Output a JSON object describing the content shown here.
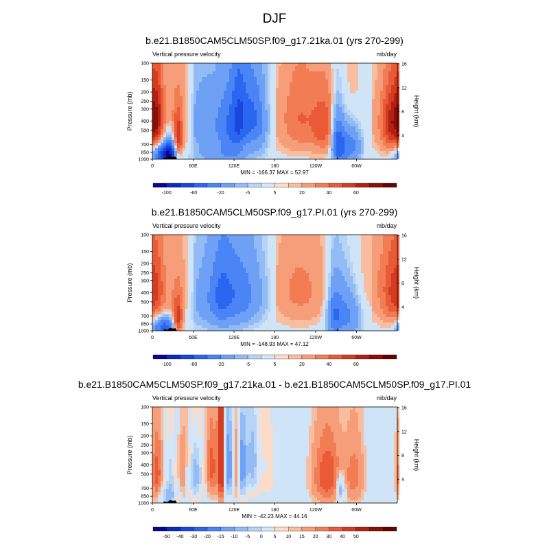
{
  "figure": {
    "season": "DJF"
  },
  "chart_data": [
    {
      "type": "heatmap",
      "title": "b.e21.B1850CAM5CLM50SP.f09_g17.21ka.01 (yrs 270-299)",
      "subtitle_left": "Vertical pressure velocity",
      "subtitle_right": "mb/day",
      "ylabel": "Pressure (mb)",
      "ylabel_right": "Height (km)",
      "xticks": [
        "0",
        "60E",
        "120E",
        "180",
        "120W",
        "60W"
      ],
      "yticks": [
        "100",
        "150",
        "200",
        "250",
        "300",
        "400",
        "500",
        "700",
        "850",
        "1000"
      ],
      "yticks_right": [
        "16",
        "12",
        "8",
        "4"
      ],
      "min_max": "MIN = -166.37  MAX =  52.97",
      "colorbar_labels": [
        "-100",
        "-60",
        "-20",
        "-5",
        "5",
        "20",
        "40",
        "60"
      ],
      "features": [
        {
          "lon": 15,
          "p": 900,
          "val": -90,
          "wx": 12,
          "wy": 150
        },
        {
          "lon": 25,
          "p": 800,
          "val": -70,
          "wx": 8,
          "wy": 200
        },
        {
          "lon": 35,
          "p": 700,
          "val": 55,
          "wx": 5,
          "wy": 250
        },
        {
          "lon": 5,
          "p": 350,
          "val": 35,
          "wx": 8,
          "wy": 250
        },
        {
          "lon": 40,
          "p": 400,
          "val": 20,
          "wx": 12,
          "wy": 300
        },
        {
          "lon": 75,
          "p": 400,
          "val": -35,
          "wx": 22,
          "wy": 250
        },
        {
          "lon": 110,
          "p": 450,
          "val": -45,
          "wx": 12,
          "wy": 300
        },
        {
          "lon": 140,
          "p": 350,
          "val": -50,
          "wx": 12,
          "wy": 250
        },
        {
          "lon": 125,
          "p": 350,
          "val": -45,
          "wx": 8,
          "wy": 300
        },
        {
          "lon": 155,
          "p": 400,
          "val": -30,
          "wx": 10,
          "wy": 250
        },
        {
          "lon": 100,
          "p": 900,
          "val": -25,
          "wx": 30,
          "wy": 150
        },
        {
          "lon": 215,
          "p": 350,
          "val": 22,
          "wx": 20,
          "wy": 300
        },
        {
          "lon": 250,
          "p": 450,
          "val": 25,
          "wx": 12,
          "wy": 250
        },
        {
          "lon": 270,
          "p": 650,
          "val": -60,
          "wx": 6,
          "wy": 300
        },
        {
          "lon": 280,
          "p": 700,
          "val": -45,
          "wx": 8,
          "wy": 300
        },
        {
          "lon": 295,
          "p": 700,
          "val": -35,
          "wx": 8,
          "wy": 250
        },
        {
          "lon": 285,
          "p": 250,
          "val": 15,
          "wx": 15,
          "wy": 200
        },
        {
          "lon": 350,
          "p": 400,
          "val": 45,
          "wx": 12,
          "wy": 250
        }
      ]
    },
    {
      "type": "heatmap",
      "title": "b.e21.B1850CAM5CLM50SP.f09_g17.PI.01 (yrs 270-299)",
      "subtitle_left": "Vertical pressure velocity",
      "subtitle_right": "mb/day",
      "ylabel": "Pressure (mb)",
      "ylabel_right": "Height (km)",
      "xticks": [
        "0",
        "60E",
        "120E",
        "180",
        "120W",
        "60W"
      ],
      "yticks": [
        "100",
        "150",
        "200",
        "250",
        "300",
        "400",
        "500",
        "700",
        "850",
        "1000"
      ],
      "yticks_right": [
        "16",
        "12",
        "8",
        "4"
      ],
      "min_max": "MIN = -148.93  MAX =  47.12",
      "colorbar_labels": [
        "-100",
        "-60",
        "-20",
        "-5",
        "5",
        "20",
        "40",
        "60"
      ],
      "features": [
        {
          "lon": 15,
          "p": 900,
          "val": -80,
          "wx": 12,
          "wy": 150
        },
        {
          "lon": 35,
          "p": 800,
          "val": 50,
          "wx": 5,
          "wy": 250
        },
        {
          "lon": 5,
          "p": 350,
          "val": 22,
          "wx": 10,
          "wy": 300
        },
        {
          "lon": 40,
          "p": 400,
          "val": 15,
          "wx": 12,
          "wy": 300
        },
        {
          "lon": 80,
          "p": 450,
          "val": -30,
          "wx": 25,
          "wy": 300
        },
        {
          "lon": 100,
          "p": 400,
          "val": -38,
          "wx": 12,
          "wy": 300
        },
        {
          "lon": 125,
          "p": 400,
          "val": -40,
          "wx": 15,
          "wy": 300
        },
        {
          "lon": 150,
          "p": 400,
          "val": -22,
          "wx": 15,
          "wy": 250
        },
        {
          "lon": 215,
          "p": 350,
          "val": 15,
          "wx": 25,
          "wy": 300
        },
        {
          "lon": 265,
          "p": 650,
          "val": -50,
          "wx": 8,
          "wy": 300
        },
        {
          "lon": 280,
          "p": 650,
          "val": -38,
          "wx": 10,
          "wy": 300
        },
        {
          "lon": 295,
          "p": 700,
          "val": -22,
          "wx": 8,
          "wy": 250
        },
        {
          "lon": 350,
          "p": 400,
          "val": 25,
          "wx": 12,
          "wy": 300
        },
        {
          "lon": 320,
          "p": 250,
          "val": 8,
          "wx": 25,
          "wy": 250
        }
      ]
    },
    {
      "type": "heatmap",
      "title": "b.e21.B1850CAM5CLM50SP.f09_g17.21ka.01 - b.e21.B1850CAM5CLM50SP.f09_g17.PI.01",
      "subtitle_left": "Vertical pressure velocity",
      "subtitle_right": "mb/day",
      "ylabel": "Pressure (mb)",
      "ylabel_right": "Height (km)",
      "xticks": [
        "0",
        "60E",
        "120E",
        "180",
        "120W",
        "60W"
      ],
      "yticks": [
        "100",
        "150",
        "200",
        "250",
        "300",
        "400",
        "500",
        "700",
        "850",
        "1000"
      ],
      "yticks_right": [
        "16",
        "12",
        "8",
        "4"
      ],
      "min_max": "MIN = -42.23  MAX =  44.16",
      "colorbar_labels": [
        "-50",
        "-40",
        "-30",
        "-20",
        "-15",
        "-10",
        "-5",
        "0",
        "5",
        "10",
        "15",
        "20",
        "30",
        "40",
        "50"
      ],
      "features": [
        {
          "lon": 5,
          "p": 500,
          "val": 18,
          "wx": 6,
          "wy": 300
        },
        {
          "lon": 25,
          "p": 500,
          "val": -12,
          "wx": 6,
          "wy": 300
        },
        {
          "lon": 45,
          "p": 450,
          "val": 10,
          "wx": 8,
          "wy": 300
        },
        {
          "lon": 60,
          "p": 500,
          "val": -20,
          "wx": 8,
          "wy": 250
        },
        {
          "lon": 85,
          "p": 400,
          "val": 18,
          "wx": 6,
          "wy": 250
        },
        {
          "lon": 100,
          "p": 350,
          "val": 35,
          "wx": 4,
          "wy": 350
        },
        {
          "lon": 110,
          "p": 400,
          "val": -30,
          "wx": 5,
          "wy": 300
        },
        {
          "lon": 120,
          "p": 400,
          "val": 15,
          "wx": 4,
          "wy": 300
        },
        {
          "lon": 130,
          "p": 400,
          "val": -25,
          "wx": 5,
          "wy": 300
        },
        {
          "lon": 145,
          "p": 350,
          "val": -18,
          "wx": 6,
          "wy": 250
        },
        {
          "lon": 165,
          "p": 400,
          "val": -5,
          "wx": 10,
          "wy": 300
        },
        {
          "lon": 255,
          "p": 500,
          "val": 20,
          "wx": 15,
          "wy": 300
        },
        {
          "lon": 275,
          "p": 700,
          "val": -25,
          "wx": 4,
          "wy": 150
        },
        {
          "lon": 295,
          "p": 500,
          "val": 12,
          "wx": 10,
          "wy": 300
        },
        {
          "lon": 20,
          "p": 850,
          "val": -15,
          "wx": 10,
          "wy": 150
        }
      ]
    }
  ]
}
